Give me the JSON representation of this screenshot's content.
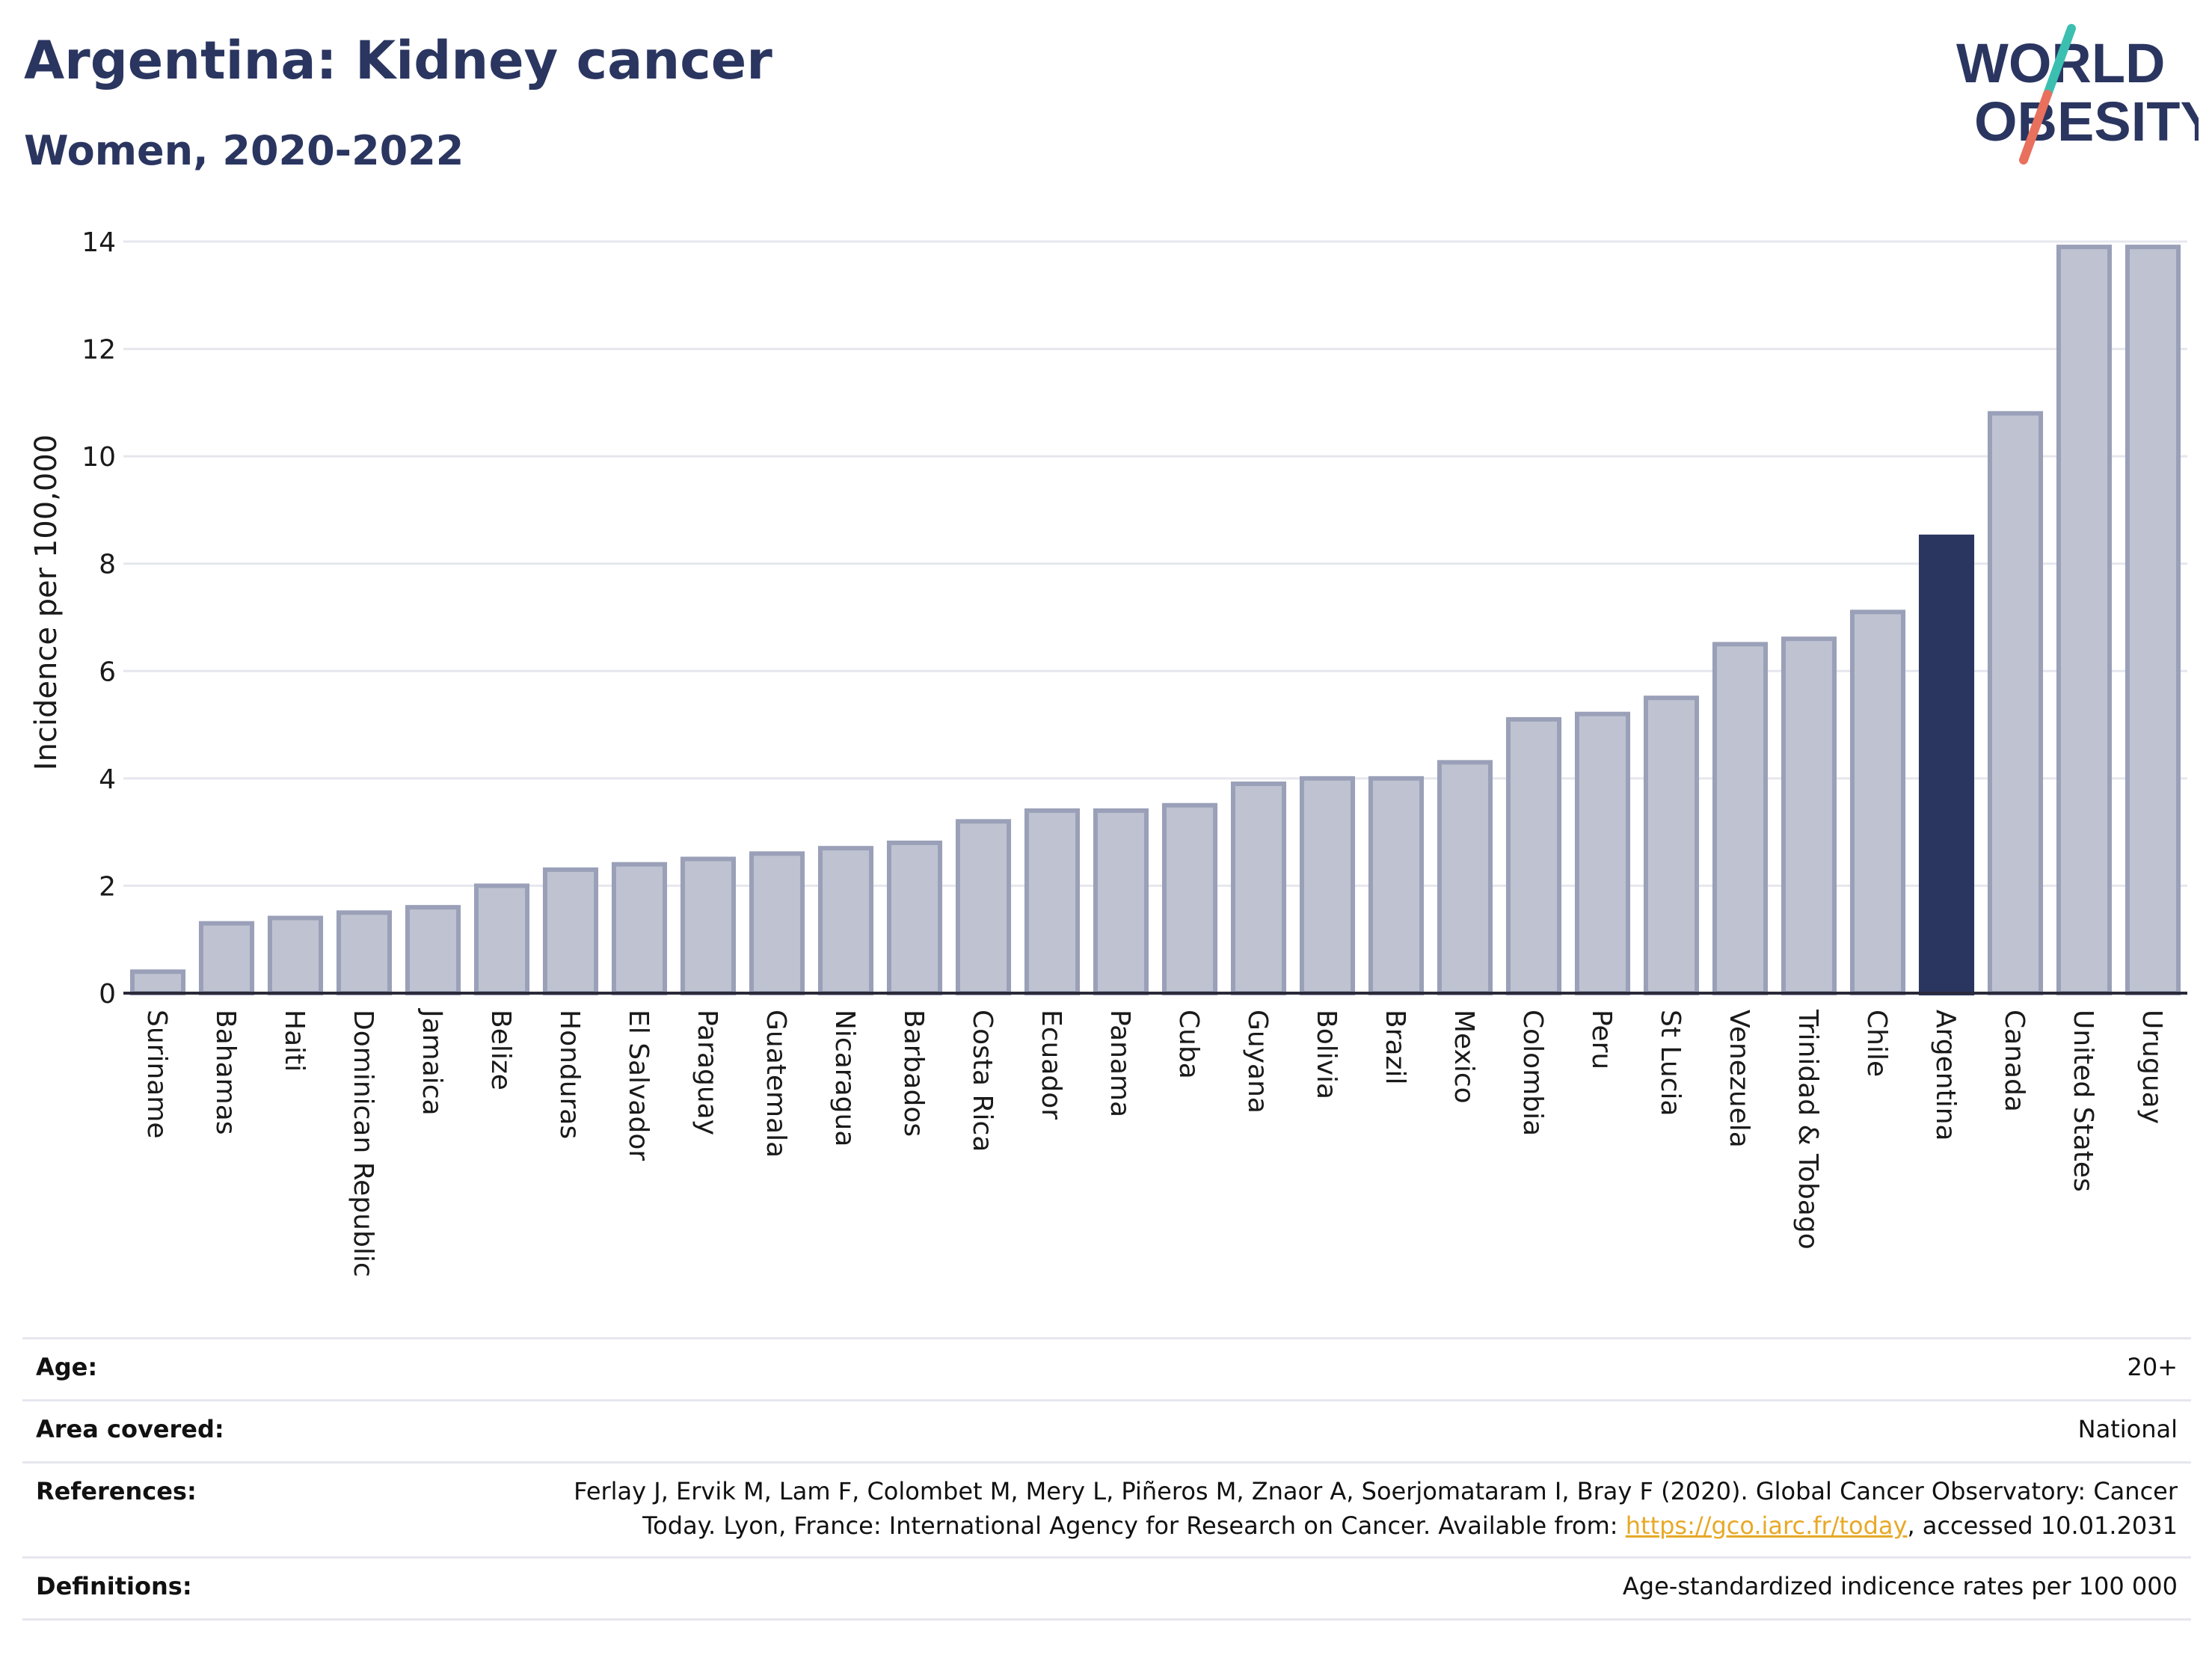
{
  "header": {
    "title": "Argentina: Kidney cancer",
    "subtitle": "Women, 2020-2022"
  },
  "logo": {
    "line1": "WORLD",
    "line2": "OBESITY",
    "text_color": "#2a3560",
    "slash_colors": [
      "#3bbfb0",
      "#e8705d"
    ]
  },
  "colors": {
    "bar_default": "#bfc3d1",
    "bar_border": "#9aa0b8",
    "bar_highlight": "#2a3560",
    "grid": "#e6e7ee",
    "axis": "#2a2a3a"
  },
  "chart_data": {
    "type": "bar",
    "ylabel": "Incidence per 100,000",
    "ylim": [
      0,
      14
    ],
    "yticks": [
      0,
      2,
      4,
      6,
      8,
      10,
      12,
      14
    ],
    "grid": true,
    "highlight": "Argentina",
    "categories": [
      "Suriname",
      "Bahamas",
      "Haiti",
      "Dominican Republic",
      "Jamaica",
      "Belize",
      "Honduras",
      "El Salvador",
      "Paraguay",
      "Guatemala",
      "Nicaragua",
      "Barbados",
      "Costa Rica",
      "Ecuador",
      "Panama",
      "Cuba",
      "Guyana",
      "Bolivia",
      "Brazil",
      "Mexico",
      "Colombia",
      "Peru",
      "St Lucia",
      "Venezuela",
      "Trinidad & Tobago",
      "Chile",
      "Argentina",
      "Canada",
      "United States",
      "Uruguay"
    ],
    "values": [
      0.4,
      1.3,
      1.4,
      1.5,
      1.6,
      2.0,
      2.3,
      2.4,
      2.5,
      2.6,
      2.7,
      2.8,
      3.2,
      3.4,
      3.4,
      3.5,
      3.9,
      4.0,
      4.0,
      4.3,
      5.1,
      5.2,
      5.5,
      6.5,
      6.6,
      7.1,
      8.5,
      10.8,
      13.9,
      13.9
    ]
  },
  "meta": {
    "age_label": "Age:",
    "age_value": "20+",
    "area_label": "Area covered:",
    "area_value": "National",
    "references_label": "References:",
    "references_line1": "Ferlay J, Ervik M, Lam F, Colombet M, Mery L, Piñeros M, Znaor A, Soerjomataram I, Bray F (2020). Global Cancer Observatory: Cancer",
    "references_line2_prefix": "Today. Lyon, France: International Agency for Research on Cancer. Available from: ",
    "references_link": "https://gco.iarc.fr/today",
    "references_line2_suffix": ", accessed 10.01.2031",
    "definitions_label": "Definitions:",
    "definitions_value": "Age-standardized indicence rates per 100 000"
  }
}
